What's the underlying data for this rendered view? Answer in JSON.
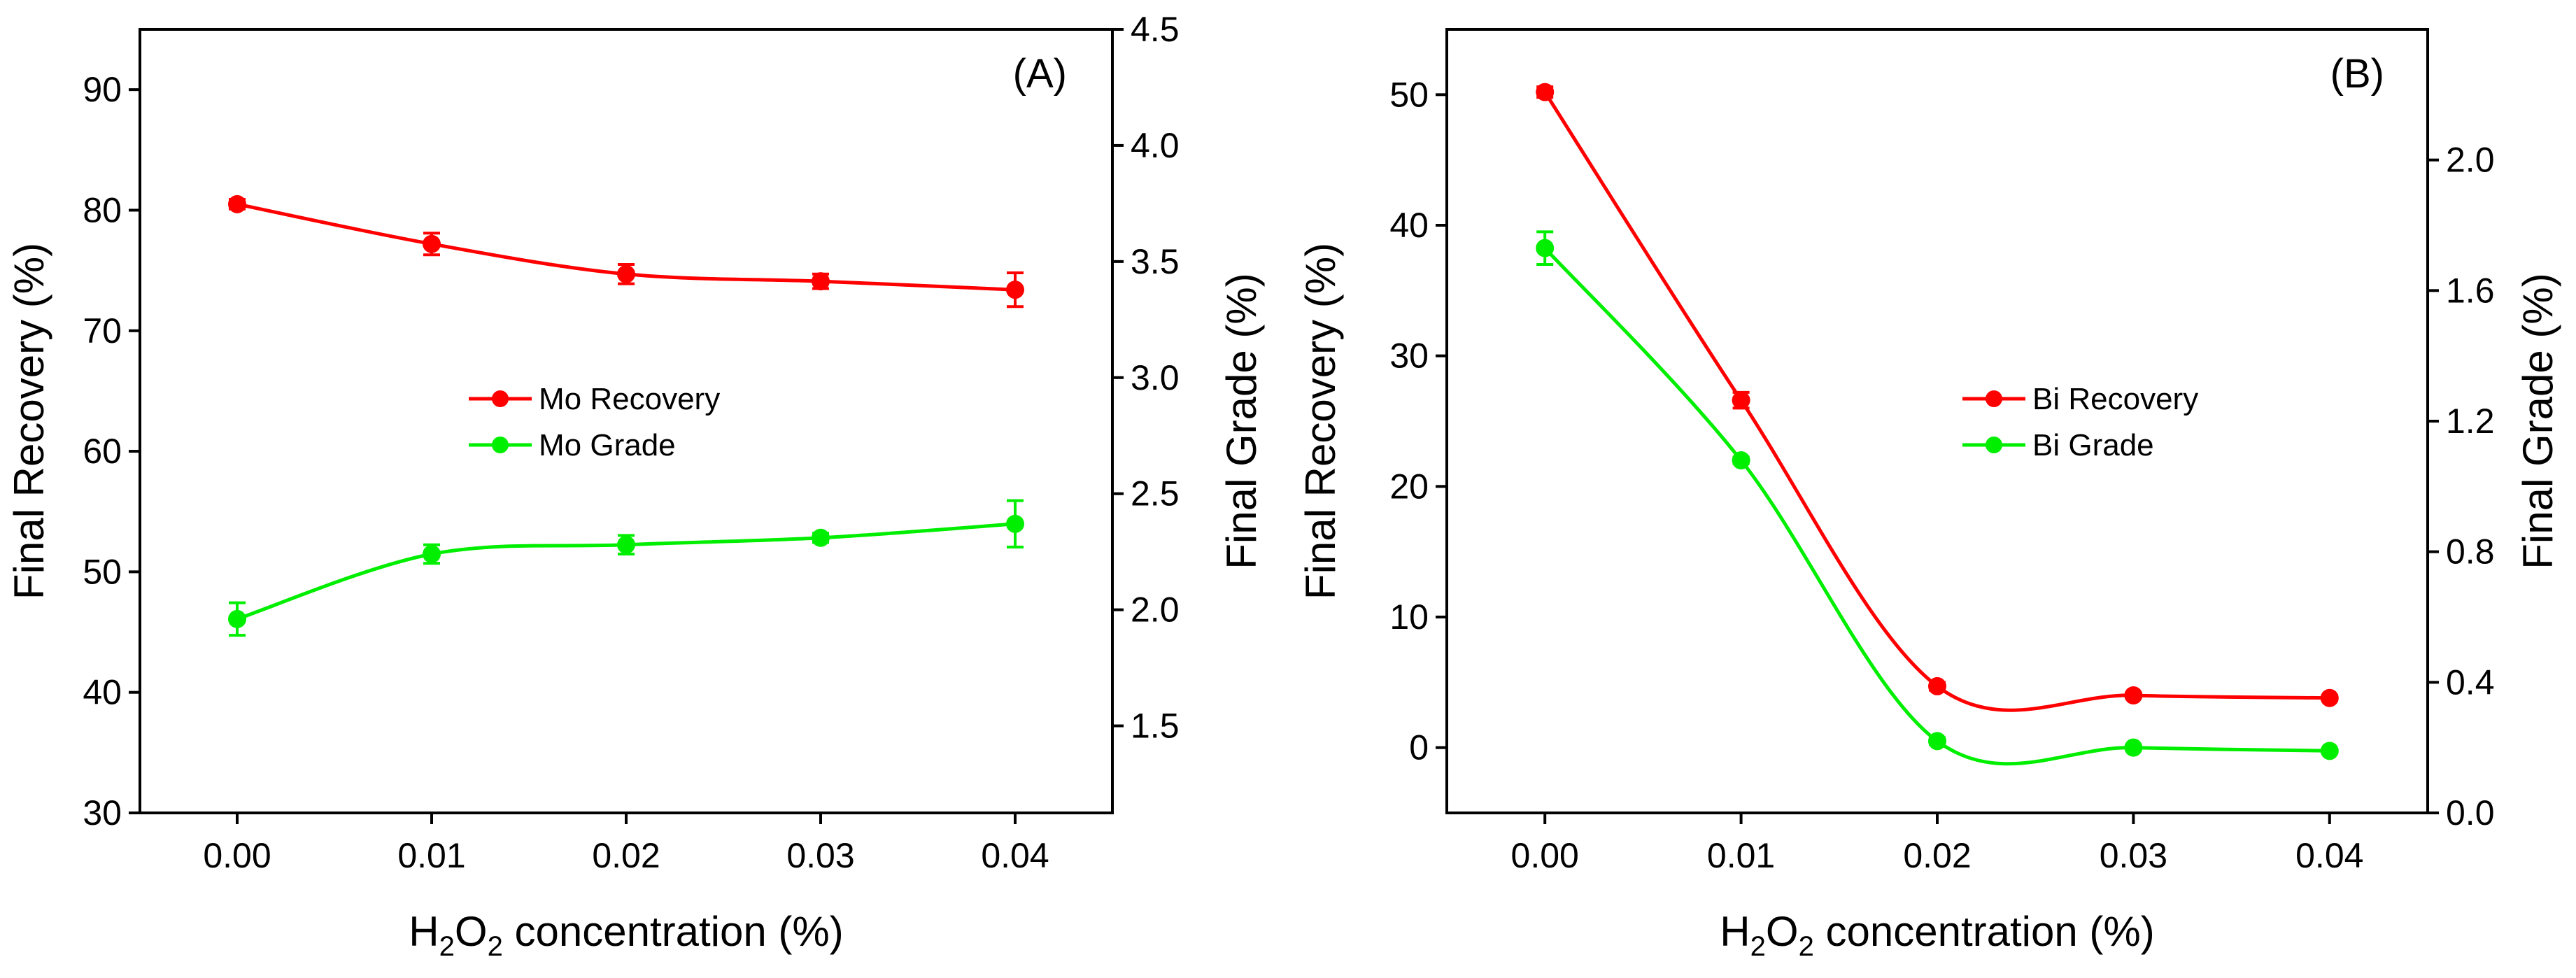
{
  "chart_data": [
    {
      "type": "line",
      "panel_label": "(A)",
      "x": [
        0.0,
        0.01,
        0.02,
        0.03,
        0.04
      ],
      "x_tick_labels": [
        "0.00",
        "0.01",
        "0.02",
        "0.03",
        "0.04"
      ],
      "xlim": [
        -0.005,
        0.045
      ],
      "xlabel": {
        "main": "H",
        "sub1": "2",
        "mid": "O",
        "sub2": "2",
        "rest": " concentration (%)"
      },
      "ylabel_left": "Final Recovery (%)",
      "ylim_left": [
        30,
        95
      ],
      "yticks_left": [
        "30",
        "40",
        "50",
        "60",
        "70",
        "80",
        "90"
      ],
      "ylabel_right": "Final Grade (%)",
      "ylim_right": [
        1.125,
        4.5
      ],
      "yticks_right": [
        "1.5",
        "2.0",
        "2.5",
        "3.0",
        "3.5",
        "4.0",
        "4.5"
      ],
      "legend_position": "center",
      "series": [
        {
          "name": "Mo Recovery",
          "axis": "left",
          "color": "#ff0000",
          "values": [
            80.5,
            77.2,
            74.7,
            74.1,
            73.4
          ],
          "errors": [
            0.4,
            0.9,
            0.8,
            0.6,
            1.4
          ]
        },
        {
          "name": "Mo Grade",
          "axis": "right",
          "color": "#00ee00",
          "values": [
            1.96,
            2.24,
            2.28,
            2.31,
            2.37
          ],
          "errors": [
            0.07,
            0.04,
            0.04,
            0.02,
            0.1
          ]
        }
      ]
    },
    {
      "type": "line",
      "panel_label": "(B)",
      "x": [
        0.0,
        0.01,
        0.02,
        0.03,
        0.04
      ],
      "x_tick_labels": [
        "0.00",
        "0.01",
        "0.02",
        "0.03",
        "0.04"
      ],
      "xlim": [
        -0.005,
        0.045
      ],
      "xlabel": {
        "main": "H",
        "sub1": "2",
        "mid": "O",
        "sub2": "2",
        "rest": " concentration (%)"
      },
      "ylabel_left": "Final Recovery (%)",
      "ylim_left": [
        -5,
        55
      ],
      "yticks_left": [
        "0",
        "10",
        "20",
        "30",
        "40",
        "50"
      ],
      "ylabel_right": "Final Grade (%)",
      "ylim_right": [
        0.0,
        2.4
      ],
      "yticks_right": [
        "0.0",
        "0.4",
        "0.8",
        "1.2",
        "1.6",
        "2.0"
      ],
      "legend_position": "center-right",
      "series": [
        {
          "name": "Bi Recovery",
          "axis": "left",
          "color": "#ff0000",
          "values": [
            50.2,
            26.6,
            4.7,
            4.0,
            3.8
          ],
          "errors": [
            0.4,
            0.6,
            0.3,
            0.2,
            0.2
          ]
        },
        {
          "name": "Bi Grade",
          "axis": "right",
          "color": "#00ee00",
          "values": [
            1.73,
            1.08,
            0.22,
            0.2,
            0.19
          ],
          "errors": [
            0.05,
            0.01,
            0.01,
            0.005,
            0.005
          ]
        }
      ]
    }
  ]
}
